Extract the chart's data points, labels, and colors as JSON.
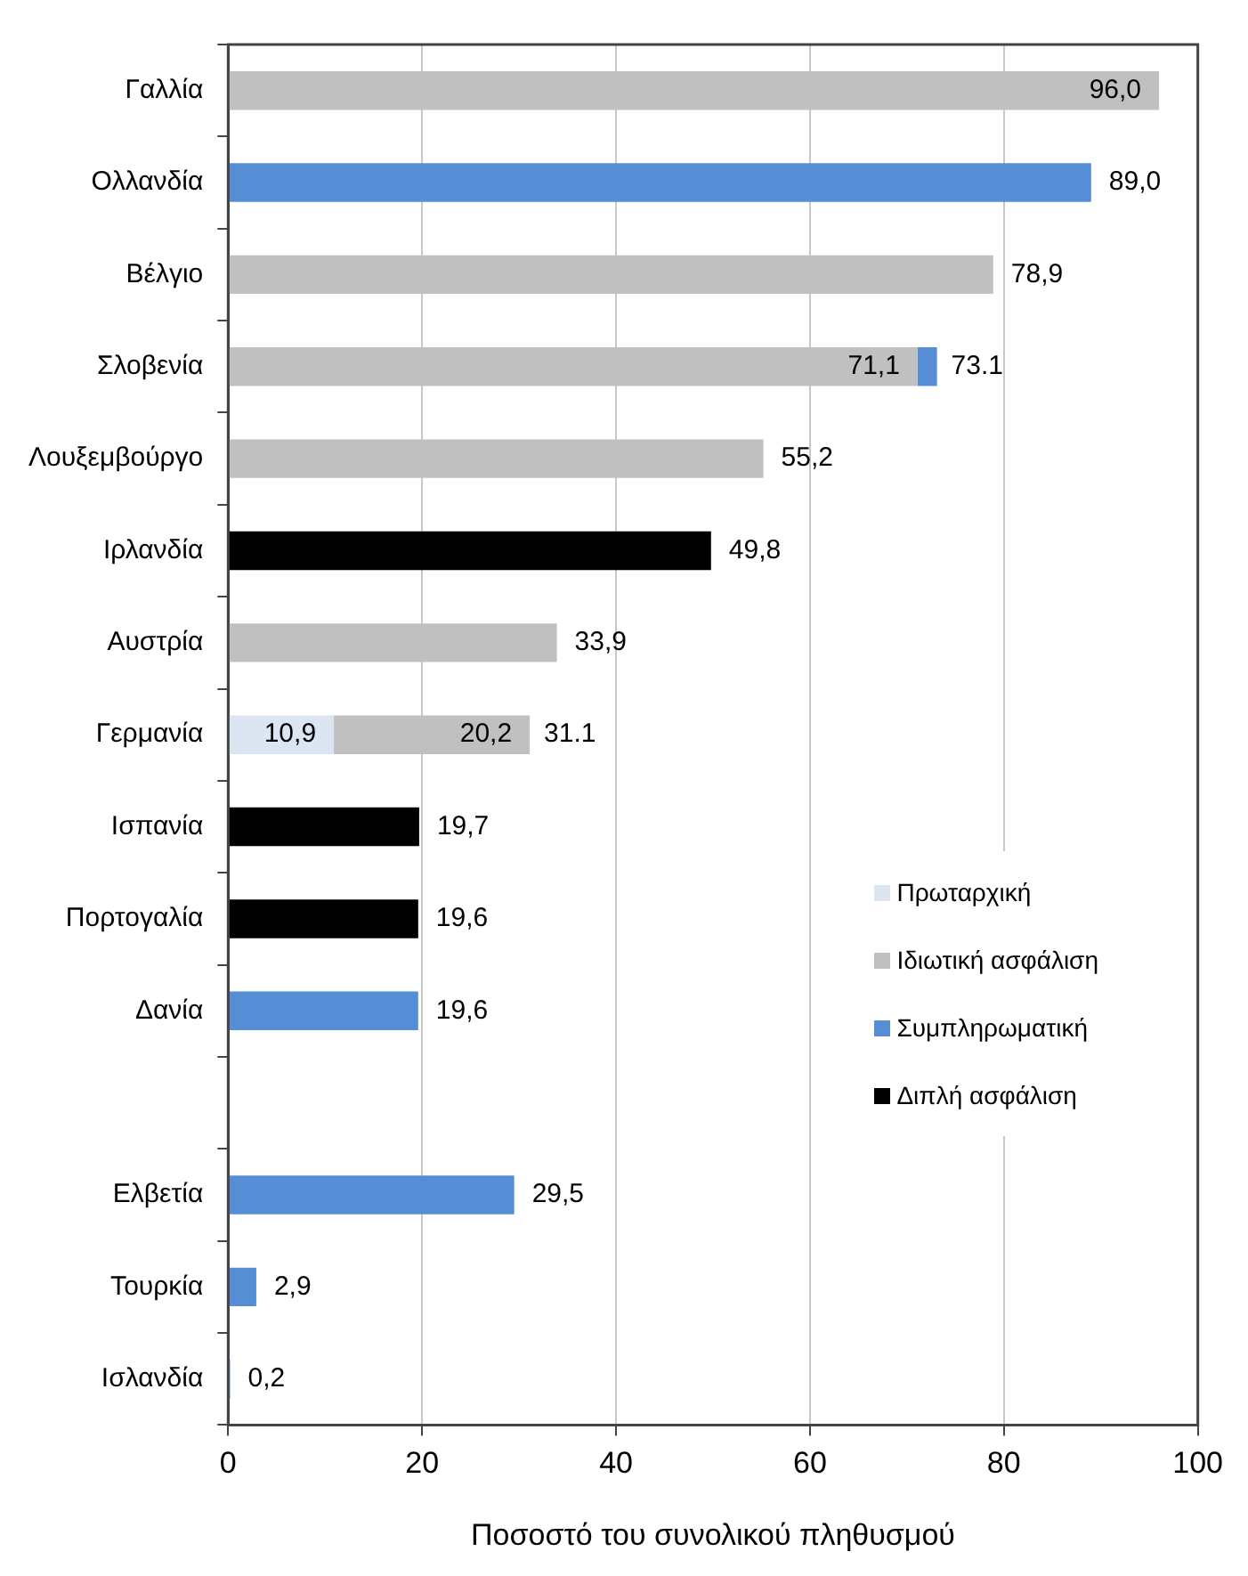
{
  "chart_data": {
    "type": "bar",
    "orientation": "horizontal",
    "stacked": true,
    "xlabel": "Ποσοστό του συνολικού πληθυσμού",
    "categories": [
      "Γαλλία",
      "Ολλανδία",
      "Βέλγιο",
      "Σλοβενία",
      "Λουξεμβούργο",
      "Ιρλανδία",
      "Αυστρία",
      "Γερμανία",
      "Ισπανία",
      "Πορτογαλία",
      "Δανία",
      null,
      "Ελβετία",
      "Τουρκία",
      "Ισλανδία"
    ],
    "series": [
      {
        "name": "Πρωταρχική",
        "color": "#dce6f2",
        "values": [
          null,
          null,
          null,
          null,
          null,
          null,
          null,
          10.9,
          null,
          null,
          null,
          null,
          null,
          null,
          null
        ],
        "value_labels": [
          null,
          null,
          null,
          null,
          null,
          null,
          null,
          "10,9",
          null,
          null,
          null,
          null,
          null,
          null,
          null
        ]
      },
      {
        "name": "Ιδιωτική ασφάλιση",
        "color": "#c0c0c0",
        "values": [
          96.0,
          null,
          78.9,
          71.1,
          55.2,
          null,
          33.9,
          20.2,
          null,
          null,
          null,
          null,
          null,
          null,
          null
        ],
        "value_labels": [
          "96,0",
          null,
          "78,9",
          "71,1",
          "55,2",
          null,
          "33,9",
          "20,2",
          null,
          null,
          null,
          null,
          null,
          null,
          null
        ]
      },
      {
        "name": "Συμπληρωματική",
        "color": "#558ed5",
        "values": [
          null,
          89.0,
          null,
          2.0,
          null,
          null,
          null,
          null,
          null,
          null,
          19.6,
          null,
          29.5,
          2.9,
          0.2
        ],
        "value_labels": [
          null,
          "89,0",
          null,
          null,
          null,
          null,
          null,
          null,
          null,
          null,
          "19,6",
          null,
          "29,5",
          "2,9",
          "0,2"
        ]
      },
      {
        "name": "Διπλή ασφάλιση",
        "color": "#000000",
        "values": [
          null,
          null,
          null,
          null,
          null,
          49.8,
          null,
          null,
          19.7,
          19.6,
          null,
          null,
          null,
          null,
          null
        ],
        "value_labels": [
          null,
          null,
          null,
          null,
          null,
          "49,8",
          null,
          null,
          "19,7",
          "19,6",
          null,
          null,
          null,
          null,
          null
        ]
      }
    ],
    "totals": [
      null,
      null,
      null,
      "73.1",
      null,
      null,
      null,
      "31.1",
      null,
      null,
      null,
      null,
      null,
      null,
      null
    ],
    "xlim": [
      0,
      100
    ],
    "xticks": [
      0,
      20,
      40,
      60,
      80,
      100
    ],
    "grid": "x",
    "legend": "right"
  }
}
